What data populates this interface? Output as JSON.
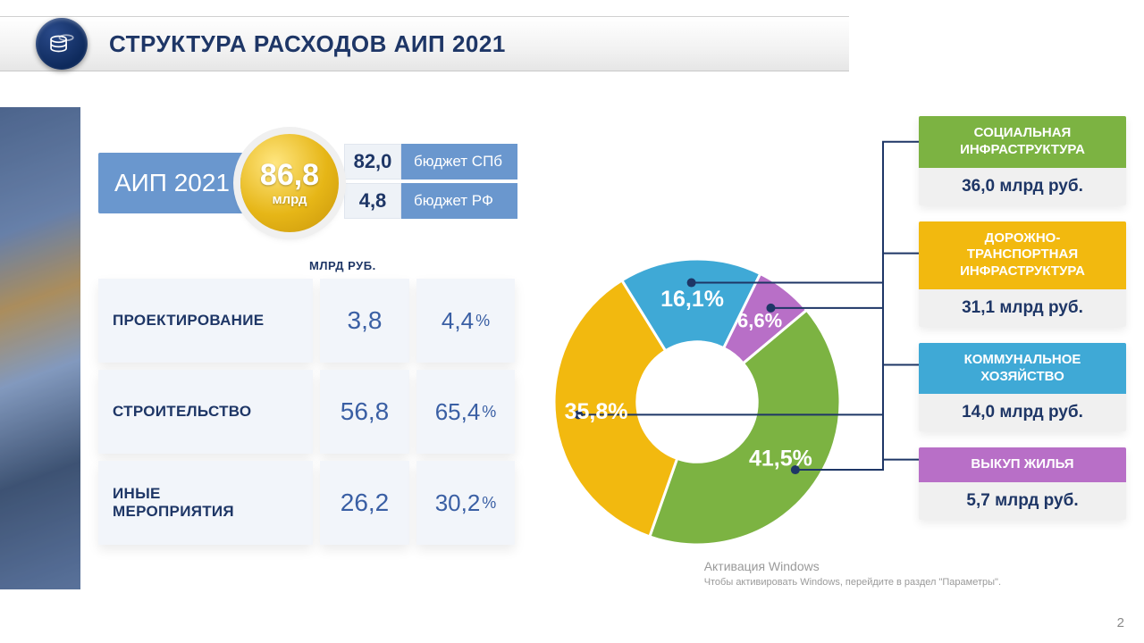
{
  "header": {
    "title": "СТРУКТУРА РАСХОДОВ АИП 2021",
    "logo_bg": "#15336b"
  },
  "totals": {
    "label": "АИП 2021",
    "label_bg": "#6a97ce",
    "total_value": "86,8",
    "total_unit": "млрд",
    "circle_color": "#e6b617",
    "budgets": [
      {
        "value": "82,0",
        "label": "бюджет СПб"
      },
      {
        "value": "4,8",
        "label": "бюджет РФ"
      }
    ]
  },
  "table": {
    "caption": "МЛРД РУБ.",
    "cell_bg": "#f2f5fa",
    "text_color": "#1e3666",
    "value_color": "#3a5fa4",
    "rows": [
      {
        "name": "ПРОЕКТИРОВАНИЕ",
        "value": "3,8",
        "pct": "4,4"
      },
      {
        "name": "СТРОИТЕЛЬСТВО",
        "value": "56,8",
        "pct": "65,4"
      },
      {
        "name": "ИНЫЕ\nМЕРОПРИЯТИЯ",
        "value": "26,2",
        "pct": "30,2"
      }
    ]
  },
  "donut": {
    "type": "donut",
    "inner_radius_ratio": 0.42,
    "center_fill": "#ffffff",
    "start_angle_deg": -40,
    "label_fontsize": 25,
    "slices": [
      {
        "pct": 41.5,
        "label": "41,5%",
        "color": "#7cb342",
        "card": 0
      },
      {
        "pct": 35.8,
        "label": "35,8%",
        "color": "#f2b90f",
        "card": 1
      },
      {
        "pct": 16.1,
        "label": "16,1%",
        "color": "#3fa9d6",
        "card": 2
      },
      {
        "pct": 6.6,
        "label": "6,6%",
        "color": "#b86fc7",
        "card": 3,
        "small": true
      }
    ],
    "leader_color": "#1e3666",
    "leader_dot_r": 5
  },
  "cards": [
    {
      "title": "СОЦИАЛЬНАЯ\nИНФРАСТРУКТУРА",
      "value": "36,0 млрд руб.",
      "color": "#7cb342"
    },
    {
      "title": "ДОРОЖНО-\nТРАНСПОРТНАЯ\nИНФРАСТРУКТУРА",
      "value": "31,1 млрд руб.",
      "color": "#f2b90f"
    },
    {
      "title": "КОММУНАЛЬНОЕ\nХОЗЯЙСТВО",
      "value": "14,0 млрд руб.",
      "color": "#3fa9d6"
    },
    {
      "title": "ВЫКУП ЖИЛЬЯ",
      "value": "5,7 млрд руб.",
      "color": "#b86fc7"
    }
  ],
  "watermark": {
    "line1": "Активация Windows",
    "line2": "Чтобы активировать Windows, перейдите в раздел \"Параметры\"."
  },
  "page_number": "2",
  "colors": {
    "brand_navy": "#1e3666",
    "panel_blue": "#6a97ce"
  }
}
